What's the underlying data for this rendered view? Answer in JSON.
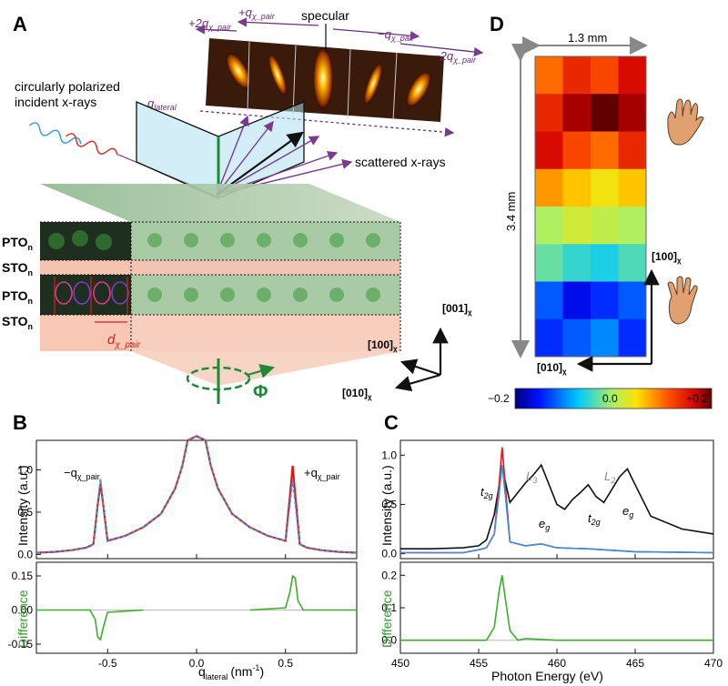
{
  "figure": {
    "panelA": {
      "letter": "A",
      "labels": {
        "specular": "specular",
        "plus_q": "+q",
        "plus_q_sub": "χ_pair",
        "minus_q": "−q",
        "minus_q_sub": "χ_pair",
        "plus_2q": "+2q",
        "plus_2q_sub": "χ_pair",
        "minus_2q": "−2q",
        "minus_2q_sub": "χ_pair",
        "q_lateral": "q",
        "q_lateral_sub": "lateral",
        "incident": "circularly polarized",
        "incident2": "incident x-rays",
        "scattered": "scattered x-rays",
        "layers": [
          "PTO",
          "STO",
          "PTO",
          "STO"
        ],
        "layer_sub": "n",
        "d_pair": "d",
        "d_pair_sub": "χ_pair",
        "phi": "Φ",
        "axis_001": "[001]",
        "axis_100": "[100]",
        "axis_010": "[010]",
        "axis_sub": "χ"
      }
    },
    "panelB": {
      "letter": "B",
      "ylabel_top": "Intensity (a.u.)",
      "ylabel_bottom": "Difference",
      "xlabel": "q",
      "xlabel_sub": "lateral",
      "xunit": "(nm",
      "xunit_sup": "-1",
      "xunit_end": ")",
      "annot_minus": "−q",
      "annot_plus": "+q",
      "annot_sub": "χ_pair"
    },
    "panelC": {
      "letter": "C",
      "ylabel_top": "Intensity (a.u.)",
      "ylabel_bottom": "Difference",
      "xlabel": "Photon Energy (eV)",
      "peaks": {
        "t2g_1": "t",
        "t2g_1_sub": "2g",
        "L3": "L",
        "L3_sub": "3",
        "eg_1": "e",
        "eg_1_sub": "g",
        "L2": "L",
        "L2_sub": "2",
        "t2g_2": "t",
        "t2g_2_sub": "2g",
        "eg_2": "e",
        "eg_2_sub": "g"
      }
    },
    "panelD": {
      "letter": "D",
      "width_label": "1.3 mm",
      "height_label": "3.4 mm",
      "axis_100": "[100]",
      "axis_010": "[010]",
      "axis_sub": "χ",
      "colorbar_ticks": [
        "−0.2",
        "0.0",
        "+0.2"
      ]
    }
  },
  "chart_data": [
    {
      "type": "line",
      "panel": "B",
      "xlabel": "q_lateral (nm^-1)",
      "ylabel": "Intensity (a.u.)",
      "xlim": [
        -0.9,
        0.9
      ],
      "ylim": [
        -0.05,
        1.35
      ],
      "x_ticks": [
        -0.5,
        0.0,
        0.5
      ],
      "x_tick_labels": [
        "-0.5",
        "0.0",
        "0.5"
      ],
      "y_ticks": [
        0.0,
        0.5,
        1.0
      ],
      "y_tick_labels": [
        "0.0",
        "0.5",
        "1.0"
      ],
      "series": [
        {
          "color": "#d81b1b",
          "x": [
            -0.9,
            -0.8,
            -0.7,
            -0.62,
            -0.58,
            -0.555,
            -0.54,
            -0.525,
            -0.5,
            -0.4,
            -0.3,
            -0.2,
            -0.12,
            -0.08,
            -0.05,
            0.0,
            0.05,
            0.08,
            0.12,
            0.2,
            0.3,
            0.4,
            0.5,
            0.525,
            0.54,
            0.555,
            0.58,
            0.62,
            0.7,
            0.8,
            0.9
          ],
          "y": [
            0.02,
            0.03,
            0.05,
            0.08,
            0.12,
            0.6,
            0.84,
            0.6,
            0.16,
            0.22,
            0.32,
            0.48,
            0.78,
            1.05,
            1.35,
            1.4,
            1.35,
            1.05,
            0.78,
            0.48,
            0.32,
            0.22,
            0.16,
            0.7,
            1.05,
            0.7,
            0.12,
            0.08,
            0.05,
            0.03,
            0.02
          ]
        },
        {
          "color": "#3c8fd8",
          "x": [
            -0.9,
            -0.8,
            -0.7,
            -0.62,
            -0.58,
            -0.555,
            -0.54,
            -0.525,
            -0.5,
            -0.4,
            -0.3,
            -0.2,
            -0.12,
            -0.08,
            -0.05,
            0.0,
            0.05,
            0.08,
            0.12,
            0.2,
            0.3,
            0.4,
            0.5,
            0.525,
            0.54,
            0.555,
            0.58,
            0.62,
            0.7,
            0.8,
            0.9
          ],
          "y": [
            0.02,
            0.03,
            0.05,
            0.08,
            0.12,
            0.62,
            0.9,
            0.62,
            0.16,
            0.22,
            0.32,
            0.48,
            0.78,
            1.05,
            1.35,
            1.4,
            1.35,
            1.05,
            0.78,
            0.48,
            0.32,
            0.22,
            0.16,
            0.6,
            0.88,
            0.6,
            0.12,
            0.08,
            0.05,
            0.03,
            0.02
          ]
        }
      ]
    },
    {
      "type": "line",
      "panel": "B-difference",
      "xlabel": "q_lateral (nm^-1)",
      "ylabel": "Difference",
      "xlim": [
        -0.9,
        0.9
      ],
      "ylim": [
        -0.19,
        0.21
      ],
      "y_ticks": [
        -0.15,
        0.0,
        0.15
      ],
      "y_tick_labels": [
        "-0.15",
        "0.00",
        "0.15"
      ],
      "x_ticks": [
        -0.5,
        0.0,
        0.5
      ],
      "x_tick_labels": [
        "-0.5",
        "0.0",
        "0.5"
      ],
      "series": [
        {
          "color": "#3cae2c",
          "x": [
            -0.9,
            -0.6,
            -0.57,
            -0.555,
            -0.54,
            -0.525,
            -0.5,
            -0.3
          ],
          "y": [
            0.0,
            0.0,
            -0.04,
            -0.12,
            -0.13,
            -0.08,
            -0.01,
            0.0
          ]
        },
        {
          "color": "#3cae2c",
          "x": [
            0.3,
            0.5,
            0.525,
            0.54,
            0.555,
            0.57,
            0.6,
            0.9
          ],
          "y": [
            0.0,
            0.01,
            0.08,
            0.15,
            0.14,
            0.04,
            0.0,
            0.0
          ]
        }
      ]
    },
    {
      "type": "line",
      "panel": "C",
      "xlabel": "Photon Energy (eV)",
      "ylabel": "Intensity (a.u.)",
      "xlim": [
        450,
        470
      ],
      "ylim": [
        -0.05,
        1.15
      ],
      "x_ticks": [
        450,
        455,
        460,
        465,
        470
      ],
      "x_tick_labels": [
        "450",
        "455",
        "460",
        "465",
        "470"
      ],
      "y_ticks": [
        0.0,
        0.5,
        1.0
      ],
      "y_tick_labels": [
        "0.0",
        "0.5",
        "1.0"
      ],
      "series": [
        {
          "color": "#111111",
          "x": [
            450,
            452,
            454,
            455,
            455.5,
            456,
            456.5,
            457,
            458,
            458.5,
            459,
            460,
            460.5,
            461,
            461.5,
            462,
            462.5,
            463,
            464,
            464.5,
            465,
            466,
            468,
            470
          ],
          "y": [
            0.05,
            0.05,
            0.06,
            0.08,
            0.14,
            0.4,
            0.88,
            0.52,
            0.72,
            0.8,
            0.9,
            0.5,
            0.45,
            0.55,
            0.62,
            0.7,
            0.58,
            0.52,
            0.78,
            0.86,
            0.7,
            0.38,
            0.25,
            0.2
          ]
        },
        {
          "color": "#d81b1b",
          "x": [
            450,
            454,
            455,
            455.5,
            456,
            456.3,
            456.5,
            456.7,
            457,
            458,
            459,
            460,
            462,
            465,
            470
          ],
          "y": [
            0.01,
            0.01,
            0.04,
            0.06,
            0.2,
            0.7,
            1.08,
            0.7,
            0.12,
            0.08,
            0.1,
            0.06,
            0.05,
            0.02,
            0.01
          ]
        },
        {
          "color": "#3c8fd8",
          "x": [
            450,
            454,
            455,
            455.5,
            456,
            456.3,
            456.5,
            456.7,
            457,
            458,
            459,
            460,
            462,
            465,
            470
          ],
          "y": [
            0.01,
            0.01,
            0.04,
            0.06,
            0.2,
            0.6,
            0.9,
            0.6,
            0.12,
            0.08,
            0.1,
            0.06,
            0.05,
            0.02,
            0.01
          ]
        }
      ]
    },
    {
      "type": "line",
      "panel": "C-difference",
      "xlabel": "Photon Energy (eV)",
      "ylabel": "Difference",
      "xlim": [
        450,
        470
      ],
      "ylim": [
        -0.04,
        0.24
      ],
      "y_ticks": [
        0.0,
        0.1,
        0.2
      ],
      "y_tick_labels": [
        "0.0",
        "0.1",
        "0.2"
      ],
      "x_ticks": [
        450,
        455,
        460,
        465,
        470
      ],
      "x_tick_labels": [
        "450",
        "455",
        "460",
        "465",
        "470"
      ],
      "series": [
        {
          "color": "#3cae2c",
          "x": [
            450,
            454,
            455.5,
            456,
            456.3,
            456.5,
            456.7,
            457,
            457.5,
            458,
            460,
            465,
            470
          ],
          "y": [
            0.0,
            0.0,
            0.0,
            0.04,
            0.15,
            0.2,
            0.13,
            0.03,
            0.0,
            0.005,
            0.0,
            0.0,
            0.0
          ]
        }
      ]
    },
    {
      "type": "heatmap",
      "panel": "D",
      "colorbar": {
        "min": -0.2,
        "max": 0.2,
        "ticks": [
          -0.2,
          0.0,
          0.2
        ],
        "tick_labels": [
          "−0.2",
          "0.0",
          "+0.2"
        ]
      },
      "rows": 8,
      "cols": 4,
      "values": [
        [
          0.1,
          0.14,
          0.12,
          0.16
        ],
        [
          0.14,
          0.18,
          0.2,
          0.18
        ],
        [
          0.16,
          0.12,
          0.1,
          0.14
        ],
        [
          0.08,
          0.06,
          0.04,
          0.06
        ],
        [
          0.0,
          0.02,
          0.01,
          0.0
        ],
        [
          -0.03,
          -0.05,
          -0.06,
          -0.04
        ],
        [
          -0.12,
          -0.16,
          -0.14,
          -0.12
        ],
        [
          -0.14,
          -0.12,
          -0.1,
          -0.14
        ]
      ]
    }
  ]
}
